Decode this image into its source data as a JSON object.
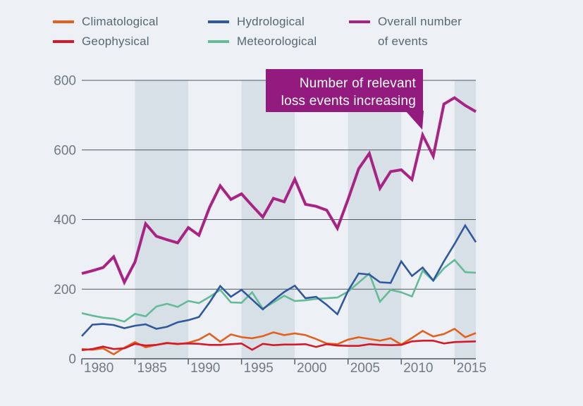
{
  "page": {
    "background": "#edf1f5"
  },
  "colors": {
    "band": "#d8e0e7",
    "grid": "#4f585f",
    "axis": "#4f585f",
    "axis_label": "#6e7a84",
    "legend_text": "#566874",
    "climatological": "#e2611f",
    "geophysical": "#d31a2b",
    "hydrological": "#30589f",
    "meteorological": "#64bb98",
    "overall": "#a82484",
    "callout_bg": "#931b80",
    "callout_text": "#ffffff"
  },
  "legend": {
    "items": [
      {
        "key": "climatological",
        "label": "Climatological",
        "color": "#e2611f"
      },
      {
        "key": "geophysical",
        "label": "Geophysical",
        "color": "#d31a2b"
      },
      {
        "key": "hydrological",
        "label": "Hydrological",
        "color": "#30589f"
      },
      {
        "key": "meteorological",
        "label": "Meteorological",
        "color": "#64bb98"
      },
      {
        "key": "overall",
        "label": "Overall number of events",
        "lines": [
          "Overall number",
          "of events"
        ],
        "color": "#a82484"
      }
    ]
  },
  "annotation": {
    "lines": [
      "Number of relevant",
      "loss events increasing"
    ],
    "bg": "#931b80",
    "text_color": "#ffffff"
  },
  "chart_data": {
    "type": "line",
    "title": "",
    "xlabel": "",
    "ylabel": "",
    "x": [
      1980,
      1981,
      1982,
      1983,
      1984,
      1985,
      1986,
      1987,
      1988,
      1989,
      1990,
      1991,
      1992,
      1993,
      1994,
      1995,
      1996,
      1997,
      1998,
      1999,
      2000,
      2001,
      2002,
      2003,
      2004,
      2005,
      2006,
      2007,
      2008,
      2009,
      2010,
      2011,
      2012,
      2013,
      2014,
      2015,
      2016,
      2017
    ],
    "x_ticks": [
      1980,
      1985,
      1990,
      1995,
      2000,
      2005,
      2010,
      2015
    ],
    "x_tick_labels": [
      "1980",
      "1985",
      "1990",
      "1995",
      "2000",
      "2005",
      "2010",
      "2015"
    ],
    "y_ticks": [
      0,
      200,
      400,
      600,
      800
    ],
    "y_tick_labels": [
      "0",
      "200",
      "400",
      "600",
      "800"
    ],
    "ylim": [
      0,
      800
    ],
    "grid": "horizontal",
    "legend_position": "top",
    "background_bands": [
      [
        1985,
        1990
      ],
      [
        1995,
        2000
      ],
      [
        2005,
        2010
      ],
      [
        2015,
        2017
      ]
    ],
    "series": [
      {
        "key": "meteorological",
        "name": "Meteorological",
        "color": "#64bb98",
        "line_width": 2.6,
        "values": [
          131,
          124,
          118,
          115,
          107,
          129,
          122,
          150,
          158,
          149,
          166,
          160,
          178,
          198,
          162,
          161,
          191,
          144,
          162,
          181,
          166,
          168,
          172,
          174,
          176,
          193,
          219,
          245,
          164,
          198,
          191,
          179,
          253,
          224,
          260,
          284,
          249,
          247
        ]
      },
      {
        "key": "hydrological",
        "name": "Hydrological",
        "color": "#30589f",
        "line_width": 2.6,
        "values": [
          65,
          98,
          100,
          97,
          88,
          95,
          99,
          86,
          92,
          105,
          111,
          120,
          162,
          209,
          178,
          198,
          170,
          142,
          168,
          192,
          210,
          174,
          178,
          155,
          128,
          195,
          245,
          242,
          220,
          218,
          280,
          238,
          262,
          225,
          280,
          330,
          383,
          335
        ]
      },
      {
        "key": "climatological",
        "name": "Climatological",
        "color": "#e2611f",
        "line_width": 2.6,
        "values": [
          28,
          26,
          30,
          13,
          32,
          48,
          33,
          40,
          46,
          42,
          46,
          55,
          72,
          49,
          70,
          62,
          59,
          65,
          76,
          68,
          73,
          68,
          57,
          44,
          42,
          55,
          62,
          57,
          52,
          59,
          41,
          60,
          80,
          64,
          71,
          86,
          62,
          74
        ]
      },
      {
        "key": "geophysical",
        "name": "Geophysical",
        "color": "#d31a2b",
        "line_width": 2.6,
        "values": [
          25,
          28,
          35,
          28,
          30,
          43,
          38,
          40,
          45,
          43,
          44,
          43,
          40,
          40,
          42,
          44,
          26,
          43,
          39,
          41,
          41,
          42,
          34,
          42,
          38,
          37,
          37,
          42,
          40,
          39,
          40,
          50,
          52,
          52,
          44,
          48,
          49,
          50
        ]
      },
      {
        "key": "overall",
        "name": "Overall number of events",
        "color": "#a82484",
        "line_width": 4,
        "values": [
          245,
          253,
          262,
          293,
          220,
          278,
          388,
          352,
          342,
          333,
          377,
          355,
          435,
          497,
          458,
          474,
          440,
          407,
          461,
          451,
          516,
          444,
          438,
          427,
          375,
          458,
          546,
          590,
          490,
          538,
          543,
          515,
          643,
          582,
          732,
          750,
          728,
          710
        ]
      }
    ]
  }
}
